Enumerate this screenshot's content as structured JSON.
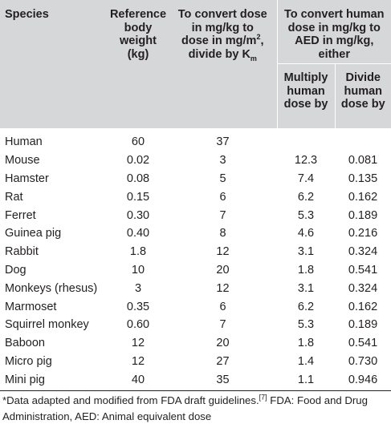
{
  "headers": {
    "species": "Species",
    "ref_weight": [
      "Reference",
      "body",
      "weight",
      "(kg)"
    ],
    "convert_lines": [
      "To convert dose",
      "in mg/kg to",
      "dose in mg/m"
    ],
    "convert_sup": "2",
    "convert_comma": ",",
    "convert_last": "divide by K",
    "convert_sub": "m",
    "human_group": [
      "To convert human",
      "dose in mg/kg to",
      "AED in mg/kg, either"
    ],
    "multiply": [
      "Multiply",
      "human",
      "dose by"
    ],
    "divide": [
      "Divide",
      "human",
      "dose by"
    ]
  },
  "rows": [
    {
      "species": "Human",
      "weight": "60",
      "km": "37",
      "multiply": "",
      "divide": ""
    },
    {
      "species": "Mouse",
      "weight": "0.02",
      "km": "3",
      "multiply": "12.3",
      "divide": "0.081"
    },
    {
      "species": "Hamster",
      "weight": "0.08",
      "km": "5",
      "multiply": "7.4",
      "divide": "0.135"
    },
    {
      "species": "Rat",
      "weight": "0.15",
      "km": "6",
      "multiply": "6.2",
      "divide": "0.162"
    },
    {
      "species": "Ferret",
      "weight": "0.30",
      "km": "7",
      "multiply": "5.3",
      "divide": "0.189"
    },
    {
      "species": "Guinea pig",
      "weight": "0.40",
      "km": "8",
      "multiply": "4.6",
      "divide": "0.216"
    },
    {
      "species": "Rabbit",
      "weight": "1.8",
      "km": "12",
      "multiply": "3.1",
      "divide": "0.324"
    },
    {
      "species": "Dog",
      "weight": "10",
      "km": "20",
      "multiply": "1.8",
      "divide": "0.541"
    },
    {
      "species": "Monkeys (rhesus)",
      "weight": "3",
      "km": "12",
      "multiply": "3.1",
      "divide": "0.324"
    },
    {
      "species": "Marmoset",
      "weight": "0.35",
      "km": "6",
      "multiply": "6.2",
      "divide": "0.162"
    },
    {
      "species": "Squirrel monkey",
      "weight": "0.60",
      "km": "7",
      "multiply": "5.3",
      "divide": "0.189"
    },
    {
      "species": "Baboon",
      "weight": "12",
      "km": "20",
      "multiply": "1.8",
      "divide": "0.541"
    },
    {
      "species": "Micro pig",
      "weight": "12",
      "km": "27",
      "multiply": "1.4",
      "divide": "0.730"
    },
    {
      "species": "Mini pig",
      "weight": "40",
      "km": "35",
      "multiply": "1.1",
      "divide": "0.946"
    }
  ],
  "footnote": {
    "part1": "*Data adapted and modified from FDA draft guidelines.",
    "ref": "[7]",
    "part2": " FDA: Food and Drug Administration, AED: Animal equivalent dose"
  },
  "colors": {
    "header_bg": "#d6d7d9",
    "text": "#231f20"
  }
}
